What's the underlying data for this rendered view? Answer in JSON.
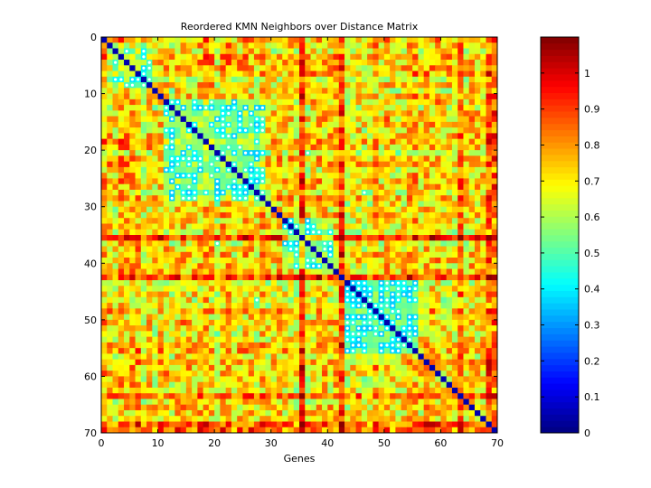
{
  "chart_data": {
    "type": "heatmap",
    "title": "Reordered KMN Neighbors over Distance Matrix",
    "xlabel": "Genes",
    "ylabel": "",
    "matrix_size": 70,
    "xlim": [
      0,
      70
    ],
    "ylim": [
      0,
      70
    ],
    "x_ticks": [
      0,
      10,
      20,
      30,
      40,
      50,
      60,
      70
    ],
    "y_ticks": [
      0,
      10,
      20,
      30,
      40,
      50,
      60,
      70
    ],
    "x_tick_labels": [
      "0",
      "10",
      "20",
      "30",
      "40",
      "50",
      "60",
      "70"
    ],
    "y_tick_labels": [
      "0",
      "10",
      "20",
      "30",
      "40",
      "50",
      "60",
      "70"
    ],
    "colormap": "jet",
    "color_range": [
      0,
      1.1
    ],
    "colorbar_ticks": [
      0,
      0.1,
      0.2,
      0.3,
      0.4,
      0.5,
      0.6,
      0.7,
      0.8,
      0.9,
      1
    ],
    "colorbar_tick_labels": [
      "0",
      "0.1",
      "0.2",
      "0.3",
      "0.4",
      "0.5",
      "0.6",
      "0.7",
      "0.8",
      "0.9",
      "1"
    ],
    "diagonal_value": 0.05,
    "typical_off_diagonal_range": [
      0.55,
      0.85
    ],
    "high_distance_genes": [
      35,
      42,
      63,
      68,
      69
    ],
    "low_distance_blocks": [
      {
        "genes": [
          1,
          8
        ],
        "value": 0.55
      },
      {
        "genes": [
          11,
          28
        ],
        "value": 0.5
      },
      {
        "genes": [
          32,
          40
        ],
        "value": 0.5
      },
      {
        "genes": [
          43,
          55
        ],
        "value": 0.48
      }
    ],
    "knn_neighbor_marker": "white dot"
  }
}
